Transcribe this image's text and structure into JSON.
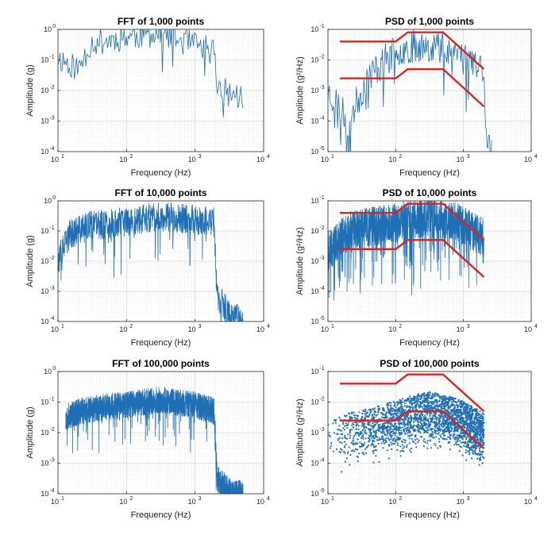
{
  "figure": {
    "colors": {
      "signal": "#1f6fb4",
      "limit": "#e0201b",
      "grid": "#d8d8d8",
      "axis": "#262626"
    }
  },
  "chart_data": [
    {
      "id": "fft-1000",
      "type": "line",
      "title": "FFT of 1,000 points",
      "xlabel": "Frequency (Hz)",
      "ylabel": "Amplitude (g)",
      "xscale": "log",
      "yscale": "log",
      "xlim_exp": [
        1,
        4
      ],
      "ylim_exp": [
        -4,
        0
      ],
      "xticks": [
        "10",
        "10",
        "10",
        "10"
      ],
      "xtick_exps": [
        "1",
        "2",
        "3",
        "4"
      ],
      "yticks": [
        "10",
        "10",
        "10",
        "10",
        "10"
      ],
      "ytick_exps": [
        "-4",
        "-3",
        "-2",
        "-1",
        "0"
      ],
      "grid": true,
      "series": [
        {
          "name": "spectrum",
          "style": "line",
          "color": "#1f6fb4",
          "density": 180,
          "seed": 11,
          "shape": [
            [
              10,
              0.12
            ],
            [
              20,
              0.05
            ],
            [
              30,
              0.35
            ],
            [
              60,
              0.45
            ],
            [
              100,
              0.6
            ],
            [
              300,
              0.7
            ],
            [
              1000,
              0.3
            ],
            [
              1900,
              0.2
            ],
            [
              2100,
              0.015
            ],
            [
              3000,
              0.008
            ],
            [
              5000,
              0.006
            ]
          ],
          "jitter": 0.45,
          "spike_rate": 0.04,
          "spike_depth": 1.2
        }
      ]
    },
    {
      "id": "psd-1000",
      "type": "line",
      "title": "PSD of 1,000 points",
      "xlabel": "Frequency (Hz)",
      "ylabel": "Amplitude (g²/Hz)",
      "xscale": "log",
      "yscale": "log",
      "xlim_exp": [
        1,
        4
      ],
      "ylim_exp": [
        -5,
        -1
      ],
      "xticks": [
        "10",
        "10",
        "10",
        "10"
      ],
      "xtick_exps": [
        "1",
        "2",
        "3",
        "4"
      ],
      "yticks": [
        "10",
        "10",
        "10",
        "10",
        "10"
      ],
      "ytick_exps": [
        "-5",
        "-4",
        "-3",
        "-2",
        "-1"
      ],
      "grid": true,
      "series": [
        {
          "name": "psd",
          "style": "line",
          "color": "#1f6fb4",
          "density": 220,
          "seed": 23,
          "shape": [
            [
              10,
              0.001
            ],
            [
              20,
              0.0001
            ],
            [
              40,
              0.003
            ],
            [
              100,
              0.02
            ],
            [
              200,
              0.03
            ],
            [
              500,
              0.03
            ],
            [
              1000,
              0.015
            ],
            [
              2000,
              0.005
            ],
            [
              2200,
              3e-05
            ],
            [
              2600,
              1e-05
            ]
          ],
          "jitter": 0.55,
          "spike_rate": 0.08,
          "spike_depth": 1.5
        },
        {
          "name": "upper limit",
          "style": "limit",
          "color": "#e0201b",
          "points": [
            [
              15,
              0.04
            ],
            [
              100,
              0.04
            ],
            [
              150,
              0.08
            ],
            [
              500,
              0.08
            ],
            [
              2000,
              0.005
            ]
          ]
        },
        {
          "name": "lower limit",
          "style": "limit",
          "color": "#e0201b",
          "points": [
            [
              15,
              0.0025
            ],
            [
              100,
              0.0025
            ],
            [
              150,
              0.005
            ],
            [
              500,
              0.005
            ],
            [
              2000,
              0.0003
            ]
          ]
        }
      ]
    },
    {
      "id": "fft-10000",
      "type": "line",
      "title": "FFT of 10,000 points",
      "xlabel": "Frequency (Hz)",
      "ylabel": "Amplitude (g)",
      "xscale": "log",
      "yscale": "log",
      "xlim_exp": [
        1,
        4
      ],
      "ylim_exp": [
        -4,
        0
      ],
      "xticks": [
        "10",
        "10",
        "10",
        "10"
      ],
      "xtick_exps": [
        "1",
        "2",
        "3",
        "4"
      ],
      "yticks": [
        "10",
        "10",
        "10",
        "10",
        "10"
      ],
      "ytick_exps": [
        "-4",
        "-3",
        "-2",
        "-1",
        "0"
      ],
      "grid": true,
      "series": [
        {
          "name": "spectrum",
          "style": "line",
          "color": "#1f6fb4",
          "density": 900,
          "seed": 37,
          "shape": [
            [
              10,
              0.01
            ],
            [
              15,
              0.08
            ],
            [
              30,
              0.15
            ],
            [
              100,
              0.2
            ],
            [
              300,
              0.3
            ],
            [
              1000,
              0.25
            ],
            [
              1900,
              0.2
            ],
            [
              2100,
              0.0006
            ],
            [
              3000,
              0.0002
            ],
            [
              5000,
              0.0001
            ]
          ],
          "jitter": 0.5,
          "spike_rate": 0.06,
          "spike_depth": 1.4
        }
      ]
    },
    {
      "id": "psd-10000",
      "type": "line",
      "title": "PSD of 10,000 points",
      "xlabel": "Frequency (Hz)",
      "ylabel": "Amplitude (g²/Hz)",
      "xscale": "log",
      "yscale": "log",
      "xlim_exp": [
        1,
        4
      ],
      "ylim_exp": [
        -5,
        -1
      ],
      "xticks": [
        "10",
        "10",
        "10",
        "10"
      ],
      "xtick_exps": [
        "1",
        "2",
        "3",
        "4"
      ],
      "yticks": [
        "10",
        "10",
        "10",
        "10",
        "10"
      ],
      "ytick_exps": [
        "-5",
        "-4",
        "-3",
        "-2",
        "-1"
      ],
      "grid": true,
      "series": [
        {
          "name": "psd",
          "style": "line",
          "color": "#1f6fb4",
          "density": 1400,
          "seed": 41,
          "shape": [
            [
              10,
              0.002
            ],
            [
              20,
              0.01
            ],
            [
              50,
              0.015
            ],
            [
              100,
              0.02
            ],
            [
              300,
              0.03
            ],
            [
              800,
              0.02
            ],
            [
              2000,
              0.006
            ]
          ],
          "jitter": 0.65,
          "spike_rate": 0.12,
          "spike_depth": 2.0
        },
        {
          "name": "upper limit",
          "style": "limit",
          "color": "#e0201b",
          "points": [
            [
              15,
              0.04
            ],
            [
              100,
              0.04
            ],
            [
              150,
              0.08
            ],
            [
              500,
              0.08
            ],
            [
              2000,
              0.005
            ]
          ]
        },
        {
          "name": "lower limit",
          "style": "limit",
          "color": "#e0201b",
          "points": [
            [
              15,
              0.0025
            ],
            [
              100,
              0.0025
            ],
            [
              150,
              0.005
            ],
            [
              500,
              0.005
            ],
            [
              2000,
              0.0003
            ]
          ]
        }
      ]
    },
    {
      "id": "fft-100000",
      "type": "line",
      "title": "FFT of 100,000 points",
      "xlabel": "Frequency (Hz)",
      "ylabel": "Amplitude (g)",
      "xscale": "log",
      "yscale": "log",
      "xlim_exp": [
        1,
        4
      ],
      "ylim_exp": [
        -4,
        0
      ],
      "xticks": [
        "10",
        "10",
        "10",
        "10"
      ],
      "xtick_exps": [
        "1",
        "2",
        "3",
        "4"
      ],
      "yticks": [
        "10",
        "10",
        "10",
        "10",
        "10"
      ],
      "ytick_exps": [
        "-4",
        "-3",
        "-2",
        "-1",
        "0"
      ],
      "grid": true,
      "series": [
        {
          "name": "spectrum",
          "style": "line",
          "color": "#1f6fb4",
          "density": 2200,
          "seed": 53,
          "shape": [
            [
              13,
              0.03
            ],
            [
              20,
              0.05
            ],
            [
              50,
              0.07
            ],
            [
              100,
              0.08
            ],
            [
              300,
              0.12
            ],
            [
              1000,
              0.08
            ],
            [
              1900,
              0.05
            ],
            [
              2100,
              0.0003
            ],
            [
              3500,
              0.0001
            ],
            [
              5000,
              0.0001
            ]
          ],
          "jitter": 0.45,
          "spike_rate": 0.05,
          "spike_depth": 1.3
        }
      ]
    },
    {
      "id": "psd-100000",
      "type": "scatter",
      "title": "PSD of 100,000 points",
      "xlabel": "Frequency (Hz)",
      "ylabel": "Amplitude (g²/Hz)",
      "xscale": "log",
      "yscale": "log",
      "xlim_exp": [
        1,
        4
      ],
      "ylim_exp": [
        -5,
        -1
      ],
      "xticks": [
        "10",
        "10",
        "10",
        "10"
      ],
      "xtick_exps": [
        "1",
        "2",
        "3",
        "4"
      ],
      "yticks": [
        "10",
        "10",
        "10",
        "10",
        "10"
      ],
      "ytick_exps": [
        "-5",
        "-4",
        "-3",
        "-2",
        "-1"
      ],
      "grid": true,
      "series": [
        {
          "name": "psd",
          "style": "scatter",
          "color": "#1f6fb4",
          "density": 2600,
          "seed": 67,
          "shape": [
            [
              10,
              0.001
            ],
            [
              20,
              0.002
            ],
            [
              50,
              0.003
            ],
            [
              100,
              0.005
            ],
            [
              300,
              0.01
            ],
            [
              800,
              0.006
            ],
            [
              2000,
              0.002
            ]
          ],
          "jitter": 0.9,
          "spike_rate": 0.0,
          "spike_depth": 0
        },
        {
          "name": "upper limit",
          "style": "limit",
          "color": "#e0201b",
          "points": [
            [
              15,
              0.04
            ],
            [
              100,
              0.04
            ],
            [
              150,
              0.08
            ],
            [
              500,
              0.08
            ],
            [
              2000,
              0.005
            ]
          ]
        },
        {
          "name": "lower limit",
          "style": "limit",
          "color": "#e0201b",
          "points": [
            [
              15,
              0.0025
            ],
            [
              100,
              0.0025
            ],
            [
              150,
              0.005
            ],
            [
              500,
              0.005
            ],
            [
              2000,
              0.0003
            ]
          ]
        }
      ]
    }
  ]
}
